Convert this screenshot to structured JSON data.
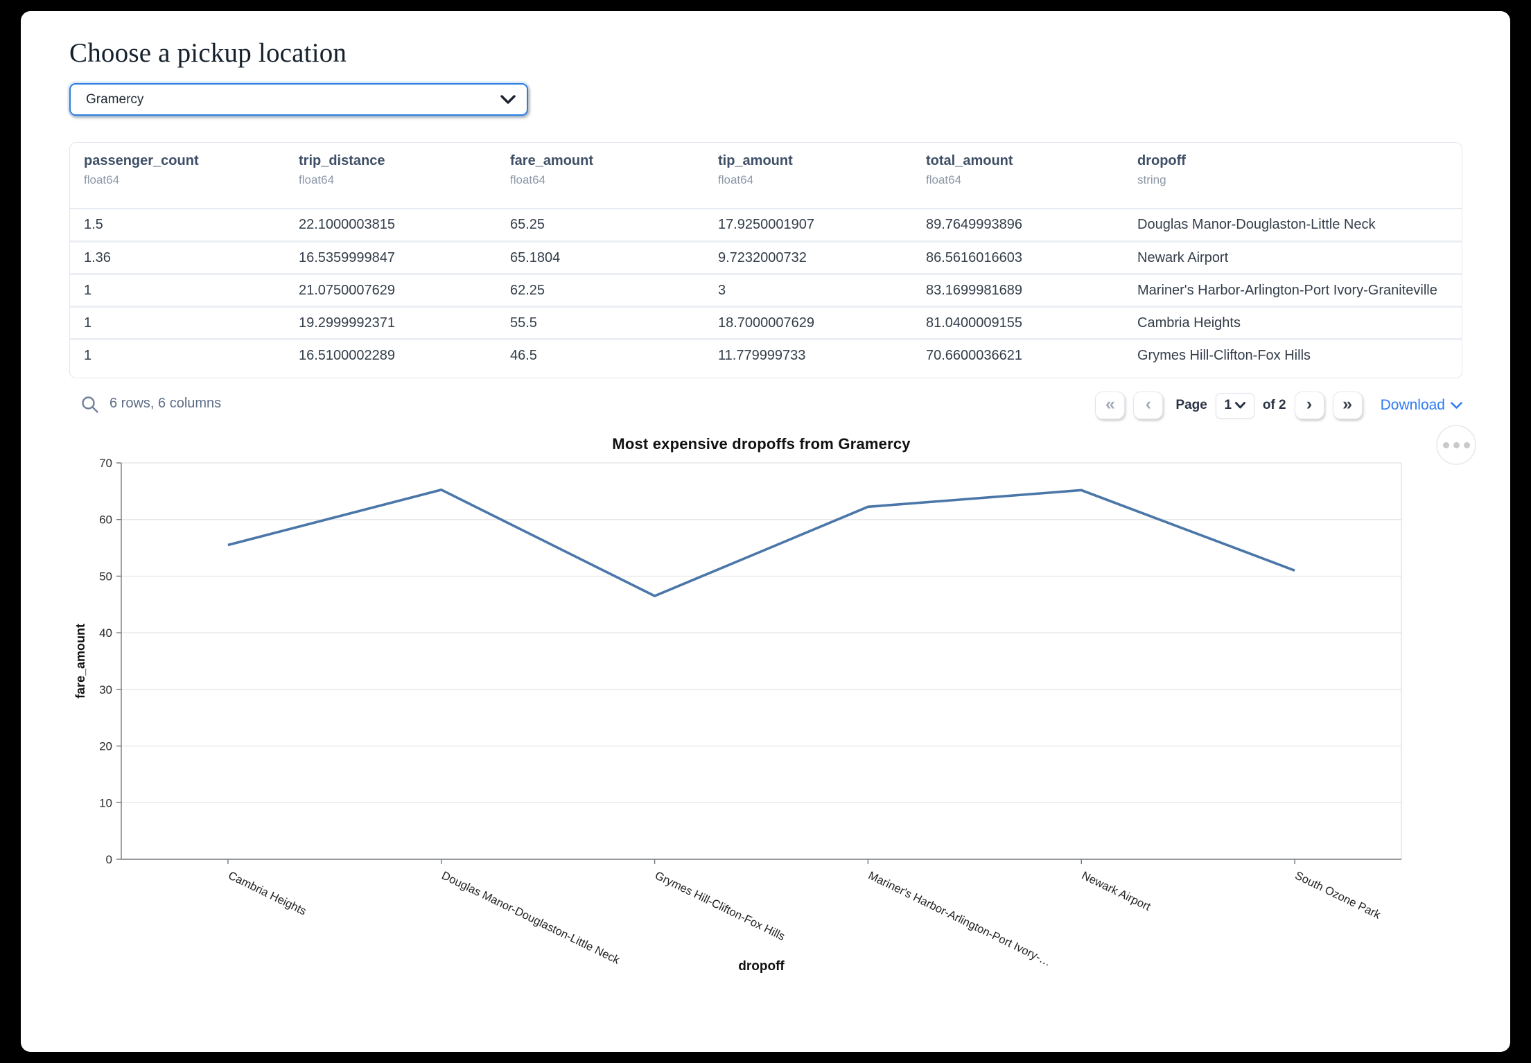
{
  "header": {
    "title": "Choose a pickup location"
  },
  "pickup_select": {
    "value": "Gramercy"
  },
  "table": {
    "columns": [
      {
        "label": "passenger_count",
        "type": "float64"
      },
      {
        "label": "trip_distance",
        "type": "float64"
      },
      {
        "label": "fare_amount",
        "type": "float64"
      },
      {
        "label": "tip_amount",
        "type": "float64"
      },
      {
        "label": "total_amount",
        "type": "float64"
      },
      {
        "label": "dropoff",
        "type": "string"
      }
    ],
    "rows": [
      [
        "1.5",
        "22.1000003815",
        "65.25",
        "17.9250001907",
        "89.7649993896",
        "Douglas Manor-Douglaston-Little Neck"
      ],
      [
        "1.36",
        "16.5359999847",
        "65.1804",
        "9.7232000732",
        "86.5616016603",
        "Newark Airport"
      ],
      [
        "1",
        "21.0750007629",
        "62.25",
        "3",
        "83.1699981689",
        "Mariner's Harbor-Arlington-Port Ivory-Graniteville"
      ],
      [
        "1",
        "19.2999992371",
        "55.5",
        "18.7000007629",
        "81.0400009155",
        "Cambria Heights"
      ],
      [
        "1",
        "16.5100002289",
        "46.5",
        "11.779999733",
        "70.6600036621",
        "Grymes Hill-Clifton-Fox Hills"
      ]
    ]
  },
  "table_footer": {
    "summary": "6 rows, 6 columns",
    "page_label": "Page",
    "page_value": "1",
    "of_label": "of 2",
    "download_label": "Download",
    "pager": [
      {
        "glyph": "«",
        "name": "first-page-button",
        "disabled": true
      },
      {
        "glyph": "‹",
        "name": "previous-page-button",
        "disabled": true
      },
      {
        "glyph": "›",
        "name": "next-page-button",
        "disabled": false
      },
      {
        "glyph": "»",
        "name": "last-page-button",
        "disabled": false
      }
    ]
  },
  "chart_data": {
    "type": "line",
    "title": "Most expensive dropoffs from Gramercy",
    "xlabel": "dropoff",
    "ylabel": "fare_amount",
    "categories": [
      "Cambria Heights",
      "Douglas Manor-Douglaston-Little Neck",
      "Grymes Hill-Clifton-Fox Hills",
      "Mariner's Harbor-Arlington-Port Ivory-…",
      "Newark Airport",
      "South Ozone Park"
    ],
    "values": [
      55.5,
      65.25,
      46.5,
      62.25,
      65.1804,
      51
    ],
    "ylim": [
      0,
      70
    ],
    "yticks": [
      0,
      10,
      20,
      30,
      40,
      50,
      60,
      70
    ],
    "grid": true,
    "legend": false,
    "line_color": "#4a76a8"
  },
  "colors": {
    "select_border": "#2b7de0",
    "link_blue": "#2e7bf3",
    "header_text": "#3d4e66",
    "line": "#4a76a8"
  }
}
